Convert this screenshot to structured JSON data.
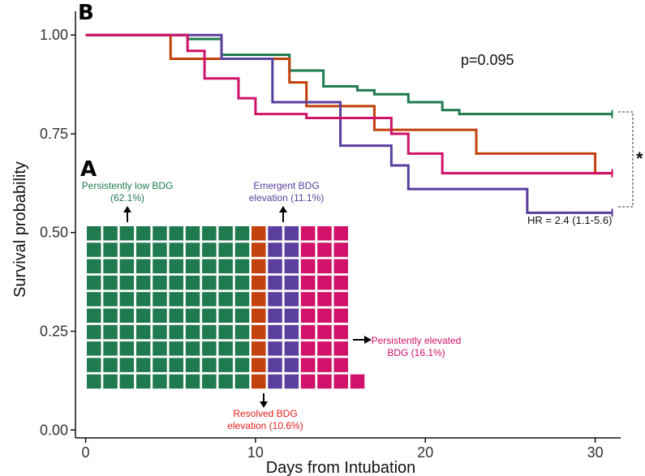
{
  "chart_data": {
    "type": "step",
    "panel_b_label": "B",
    "xlabel": "Days from Intubation",
    "ylabel": "Survival probability",
    "xlim": [
      -0.6,
      31.5
    ],
    "ylim": [
      -0.02,
      1.06
    ],
    "xticks": [
      0,
      10,
      20,
      30
    ],
    "yticks": [
      {
        "v": 0.0,
        "label": "0.00"
      },
      {
        "v": 0.25,
        "label": "0.25"
      },
      {
        "v": 0.5,
        "label": "0.50"
      },
      {
        "v": 0.75,
        "label": "0.75"
      },
      {
        "v": 1.0,
        "label": "1.00"
      }
    ],
    "p_value": "p=0.095",
    "significance": "*",
    "hazard_ratio": "HR = 2.4 (1.1-5.6)",
    "series": [
      {
        "key": "low",
        "color": "#1f7a4f",
        "censor_at": 31,
        "points": [
          [
            0,
            1.0
          ],
          [
            6,
            0.99
          ],
          [
            8,
            0.95
          ],
          [
            12,
            0.91
          ],
          [
            14,
            0.87
          ],
          [
            16,
            0.86
          ],
          [
            17,
            0.85
          ],
          [
            19,
            0.83
          ],
          [
            21,
            0.81
          ],
          [
            22,
            0.8
          ],
          [
            31,
            0.8
          ]
        ]
      },
      {
        "key": "resolved",
        "color": "#c2410c",
        "censor_at": 31,
        "points": [
          [
            0,
            1.0
          ],
          [
            5,
            0.94
          ],
          [
            11,
            0.94
          ],
          [
            12,
            0.88
          ],
          [
            13,
            0.82
          ],
          [
            17,
            0.76
          ],
          [
            23,
            0.7
          ],
          [
            30,
            0.65
          ],
          [
            31,
            0.65
          ]
        ]
      },
      {
        "key": "emergent",
        "color": "#5a3f9e",
        "censor_at": 31,
        "points": [
          [
            0,
            1.0
          ],
          [
            8,
            0.94
          ],
          [
            11,
            0.83
          ],
          [
            15,
            0.72
          ],
          [
            18,
            0.67
          ],
          [
            19,
            0.61
          ],
          [
            26,
            0.55
          ],
          [
            31,
            0.55
          ]
        ]
      },
      {
        "key": "elevated",
        "color": "#d0126a",
        "censor_at": 31,
        "points": [
          [
            0,
            1.0
          ],
          [
            6,
            0.96
          ],
          [
            7,
            0.89
          ],
          [
            9,
            0.84
          ],
          [
            10,
            0.8
          ],
          [
            13,
            0.79
          ],
          [
            18,
            0.75
          ],
          [
            19,
            0.7
          ],
          [
            21,
            0.65
          ],
          [
            31,
            0.65
          ]
        ]
      }
    ]
  },
  "waffle": {
    "panel_label": "A",
    "columns": 17,
    "rows": 10,
    "groups": [
      {
        "key": "low",
        "color": "#1f7a4f",
        "text_color": "#1f7a4f",
        "label_line1": "Persistently low BDG",
        "label_line2": "(62.1%)",
        "columns": 10,
        "extra": 0
      },
      {
        "key": "resolved",
        "color": "#c2410c",
        "text_color": "#e11d1d",
        "label_line1": "Resolved BDG",
        "label_line2": "elevation (10.6%)",
        "columns": 1,
        "extra": 1
      },
      {
        "key": "emergent",
        "color": "#5a3f9e",
        "text_color": "#5a3f9e",
        "label_line1": "Emergent BDG",
        "label_line2": "elevation (11.1%)",
        "columns": 2,
        "extra": 0
      },
      {
        "key": "elevated",
        "color": "#d0126a",
        "text_color": "#d0126a",
        "label_line1": "Persistently elevated",
        "label_line2": "BDG (16.1%)",
        "columns": 3,
        "extra": 1
      }
    ]
  }
}
